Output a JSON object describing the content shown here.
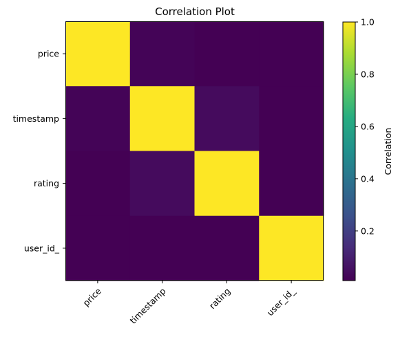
{
  "chart_data": {
    "type": "heatmap",
    "title": "Correlation Plot",
    "rows": [
      "price",
      "timestamp",
      "rating",
      "user_id_"
    ],
    "cols": [
      "price",
      "timestamp",
      "rating",
      "user_id_"
    ],
    "values": [
      [
        1.0,
        0.02,
        0.01,
        0.01
      ],
      [
        0.02,
        1.0,
        0.04,
        0.01
      ],
      [
        0.01,
        0.04,
        1.0,
        0.01
      ],
      [
        0.01,
        0.01,
        0.01,
        1.0
      ]
    ],
    "colorbar": {
      "label": "Correlation",
      "ticks": [
        "0.2",
        "0.4",
        "0.6",
        "0.8",
        "1.0"
      ],
      "tick_values": [
        0.2,
        0.4,
        0.6,
        0.8,
        1.0
      ],
      "vmin": 0.01,
      "vmax": 1.0,
      "colormap": "viridis"
    }
  }
}
